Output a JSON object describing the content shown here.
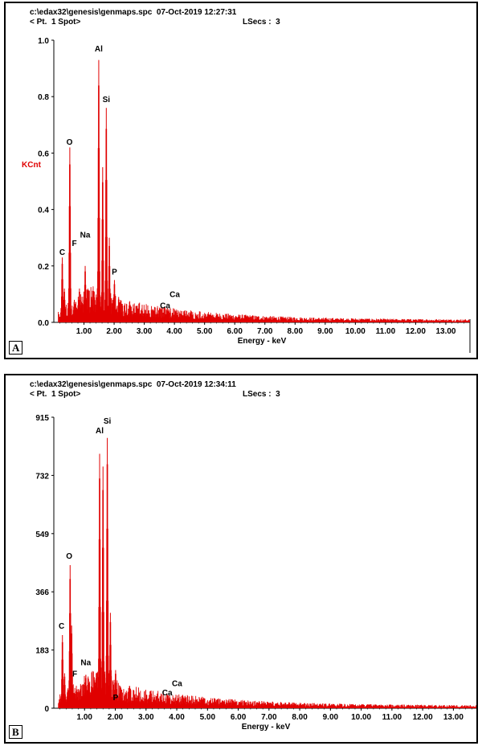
{
  "colors": {
    "spectrum": "#e00000",
    "axis": "#000000",
    "ylabel": "#e00000"
  },
  "chart_data": [
    {
      "type": "bar",
      "panel_label": "A",
      "header_line1": "c:\\edax32\\genesis\\genmaps.spc  07-Oct-2019 12:27:31",
      "header_line2": "< Pt.  1 Spot>",
      "lsecs": "LSecs :  3",
      "xlabel": "Energy - keV",
      "ylabel": "KCnt",
      "xlim": [
        0,
        13.8
      ],
      "ylim": [
        0,
        1.0
      ],
      "xticks": [
        "1.00",
        "2.00",
        "3.00",
        "4.00",
        "5.00",
        "6.00",
        "7.00",
        "8.00",
        "9.00",
        "10.00",
        "11.00",
        "12.00",
        "13.00"
      ],
      "yticks": [
        "0.0",
        "0.2",
        "0.4",
        "0.6",
        "0.8",
        "1.0"
      ],
      "peaks": [
        {
          "x": 0.28,
          "y": 0.23
        },
        {
          "x": 0.35,
          "y": 0.12
        },
        {
          "x": 0.53,
          "y": 0.62
        },
        {
          "x": 0.68,
          "y": 0.08
        },
        {
          "x": 0.85,
          "y": 0.12
        },
        {
          "x": 1.04,
          "y": 0.2
        },
        {
          "x": 1.25,
          "y": 0.09
        },
        {
          "x": 1.49,
          "y": 0.93
        },
        {
          "x": 1.62,
          "y": 0.55
        },
        {
          "x": 1.74,
          "y": 0.76
        },
        {
          "x": 1.84,
          "y": 0.3
        },
        {
          "x": 2.01,
          "y": 0.15
        },
        {
          "x": 2.15,
          "y": 0.09
        },
        {
          "x": 3.69,
          "y": 0.03
        },
        {
          "x": 4.01,
          "y": 0.025
        }
      ],
      "element_labels": [
        {
          "text": "C",
          "x": 0.28,
          "y": 0.24
        },
        {
          "text": "O",
          "x": 0.52,
          "y": 0.63
        },
        {
          "text": "F",
          "x": 0.68,
          "y": 0.27
        },
        {
          "text": "Na",
          "x": 1.04,
          "y": 0.3
        },
        {
          "text": "Al",
          "x": 1.49,
          "y": 0.96
        },
        {
          "text": "Si",
          "x": 1.74,
          "y": 0.78
        },
        {
          "text": "P",
          "x": 2.01,
          "y": 0.17
        },
        {
          "text": "Ca",
          "x": 3.69,
          "y": 0.05
        },
        {
          "text": "Ca",
          "x": 4.01,
          "y": 0.09
        }
      ]
    },
    {
      "type": "bar",
      "panel_label": "B",
      "header_line1": "c:\\edax32\\genesis\\genmaps.spc  07-Oct-2019 12:34:11",
      "header_line2": "< Pt.  1 Spot>",
      "lsecs": "LSecs :  3",
      "xlabel": "Energy - keV",
      "ylabel": "",
      "xlim": [
        0,
        13.8
      ],
      "ylim": [
        0,
        915
      ],
      "xticks": [
        "1.00",
        "2.00",
        "3.00",
        "4.00",
        "5.00",
        "6.00",
        "7.00",
        "8.00",
        "9.00",
        "10.00",
        "11.00",
        "12.00",
        "13.00"
      ],
      "yticks": [
        "0",
        "183",
        "366",
        "549",
        "732",
        "915"
      ],
      "peaks": [
        {
          "x": 0.28,
          "y": 230
        },
        {
          "x": 0.35,
          "y": 110
        },
        {
          "x": 0.53,
          "y": 450
        },
        {
          "x": 0.58,
          "y": 260
        },
        {
          "x": 0.68,
          "y": 50
        },
        {
          "x": 1.04,
          "y": 105
        },
        {
          "x": 1.25,
          "y": 60
        },
        {
          "x": 1.49,
          "y": 800
        },
        {
          "x": 1.6,
          "y": 760
        },
        {
          "x": 1.74,
          "y": 850
        },
        {
          "x": 1.84,
          "y": 300
        },
        {
          "x": 2.01,
          "y": 120
        },
        {
          "x": 2.15,
          "y": 70
        },
        {
          "x": 3.69,
          "y": 30
        },
        {
          "x": 4.01,
          "y": 25
        }
      ],
      "element_labels": [
        {
          "text": "C",
          "x": 0.25,
          "y": 250
        },
        {
          "text": "O",
          "x": 0.5,
          "y": 470
        },
        {
          "text": "F",
          "x": 0.68,
          "y": 100
        },
        {
          "text": "Na",
          "x": 1.04,
          "y": 135
        },
        {
          "text": "Al",
          "x": 1.49,
          "y": 865
        },
        {
          "text": "Si",
          "x": 1.74,
          "y": 895
        },
        {
          "text": "P",
          "x": 2.01,
          "y": 25
        },
        {
          "text": "Ca",
          "x": 3.69,
          "y": 40
        },
        {
          "text": "Ca",
          "x": 4.01,
          "y": 70
        }
      ]
    }
  ]
}
